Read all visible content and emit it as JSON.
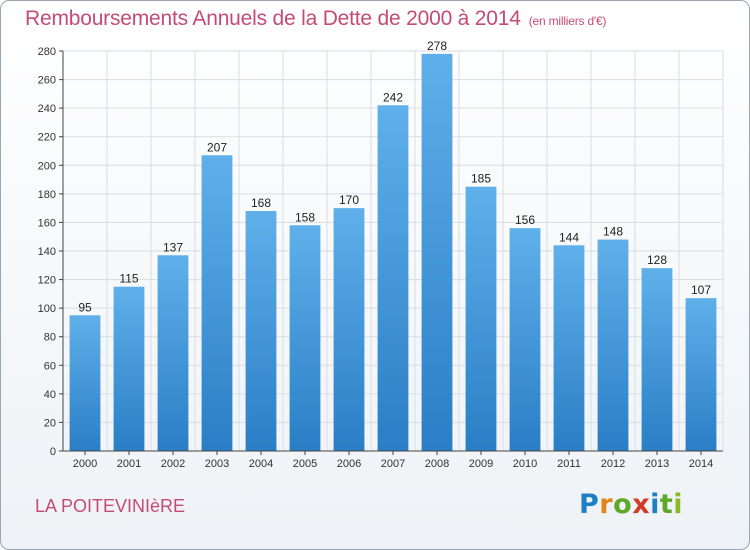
{
  "header": {
    "title": "Remboursements Annuels de la Dette de 2000 à 2014",
    "subtitle": "(en milliers d'€)"
  },
  "footer": {
    "commune": "LA POITEVINIèRE",
    "logo_letters": [
      "P",
      "r",
      "o",
      "x",
      "i",
      "t",
      "i"
    ]
  },
  "colors": {
    "bar_top": "#5fb0ea",
    "bar_bottom": "#2a7ec5",
    "grid": "#d9dde2",
    "axis": "#444444",
    "title": "#c44c74"
  },
  "chart_data": {
    "type": "bar",
    "title": "Remboursements Annuels de la Dette de 2000 à 2014",
    "subtitle": "(en milliers d'€)",
    "xlabel": "",
    "ylabel": "",
    "categories": [
      "2000",
      "2001",
      "2002",
      "2003",
      "2004",
      "2005",
      "2006",
      "2007",
      "2008",
      "2009",
      "2010",
      "2011",
      "2012",
      "2013",
      "2014"
    ],
    "values": [
      95,
      115,
      137,
      207,
      168,
      158,
      170,
      242,
      278,
      185,
      156,
      144,
      148,
      128,
      107
    ],
    "ylim": [
      0,
      280
    ],
    "yticks": [
      0,
      20,
      40,
      60,
      80,
      100,
      120,
      140,
      160,
      180,
      200,
      220,
      240,
      260,
      280
    ],
    "grid": true,
    "data_labels": true
  }
}
